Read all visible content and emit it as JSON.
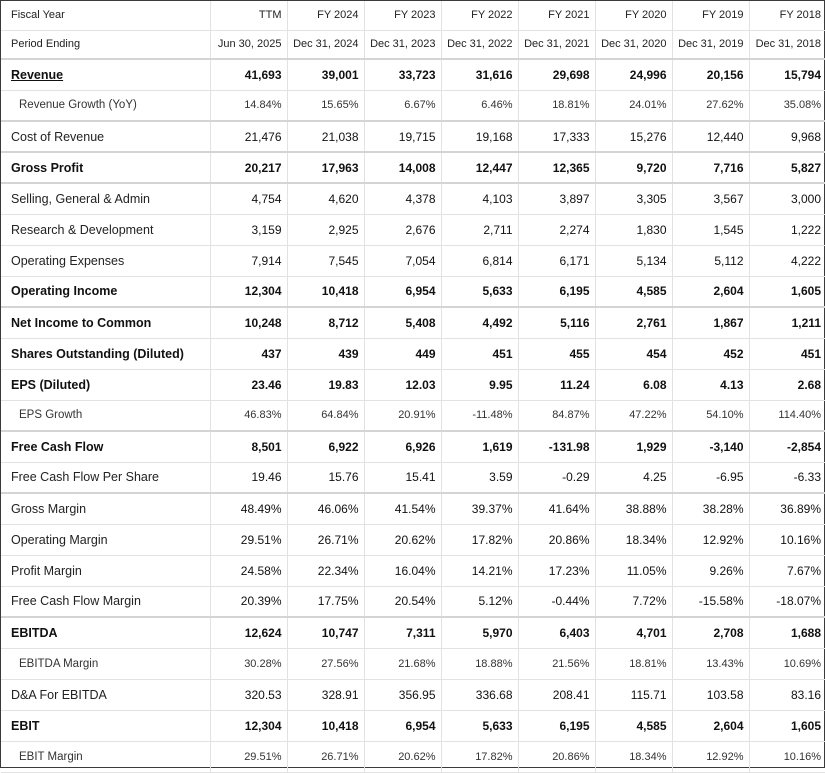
{
  "header": {
    "fiscal_year_label": "Fiscal Year",
    "period_label": "Period Ending",
    "years": [
      "TTM",
      "FY 2024",
      "FY 2023",
      "FY 2022",
      "FY 2021",
      "FY 2020",
      "FY 2019",
      "FY 2018"
    ],
    "periods": [
      "Jun 30, 2025",
      "Dec 31, 2024",
      "Dec 31, 2023",
      "Dec 31, 2022",
      "Dec 31, 2021",
      "Dec 31, 2020",
      "Dec 31, 2019",
      "Dec 31, 2018"
    ]
  },
  "rows": [
    {
      "label": "Revenue",
      "values": [
        "41,693",
        "39,001",
        "33,723",
        "31,616",
        "29,698",
        "24,996",
        "20,156",
        "15,794"
      ]
    },
    {
      "label": "Revenue Growth (YoY)",
      "values": [
        "14.84%",
        "15.65%",
        "6.67%",
        "6.46%",
        "18.81%",
        "24.01%",
        "27.62%",
        "35.08%"
      ]
    },
    {
      "label": "Cost of Revenue",
      "values": [
        "21,476",
        "21,038",
        "19,715",
        "19,168",
        "17,333",
        "15,276",
        "12,440",
        "9,968"
      ]
    },
    {
      "label": "Gross Profit",
      "values": [
        "20,217",
        "17,963",
        "14,008",
        "12,447",
        "12,365",
        "9,720",
        "7,716",
        "5,827"
      ]
    },
    {
      "label": "Selling, General & Admin",
      "values": [
        "4,754",
        "4,620",
        "4,378",
        "4,103",
        "3,897",
        "3,305",
        "3,567",
        "3,000"
      ]
    },
    {
      "label": "Research & Development",
      "values": [
        "3,159",
        "2,925",
        "2,676",
        "2,711",
        "2,274",
        "1,830",
        "1,545",
        "1,222"
      ]
    },
    {
      "label": "Operating Expenses",
      "values": [
        "7,914",
        "7,545",
        "7,054",
        "6,814",
        "6,171",
        "5,134",
        "5,112",
        "4,222"
      ]
    },
    {
      "label": "Operating Income",
      "values": [
        "12,304",
        "10,418",
        "6,954",
        "5,633",
        "6,195",
        "4,585",
        "2,604",
        "1,605"
      ]
    },
    {
      "label": "Net Income to Common",
      "values": [
        "10,248",
        "8,712",
        "5,408",
        "4,492",
        "5,116",
        "2,761",
        "1,867",
        "1,211"
      ]
    },
    {
      "label": "Shares Outstanding (Diluted)",
      "values": [
        "437",
        "439",
        "449",
        "451",
        "455",
        "454",
        "452",
        "451"
      ]
    },
    {
      "label": "EPS (Diluted)",
      "values": [
        "23.46",
        "19.83",
        "12.03",
        "9.95",
        "11.24",
        "6.08",
        "4.13",
        "2.68"
      ]
    },
    {
      "label": "EPS Growth",
      "values": [
        "46.83%",
        "64.84%",
        "20.91%",
        "-11.48%",
        "84.87%",
        "47.22%",
        "54.10%",
        "114.40%"
      ]
    },
    {
      "label": "Free Cash Flow",
      "values": [
        "8,501",
        "6,922",
        "6,926",
        "1,619",
        "-131.98",
        "1,929",
        "-3,140",
        "-2,854"
      ]
    },
    {
      "label": "Free Cash Flow Per Share",
      "values": [
        "19.46",
        "15.76",
        "15.41",
        "3.59",
        "-0.29",
        "4.25",
        "-6.95",
        "-6.33"
      ]
    },
    {
      "label": "Gross Margin",
      "values": [
        "48.49%",
        "46.06%",
        "41.54%",
        "39.37%",
        "41.64%",
        "38.88%",
        "38.28%",
        "36.89%"
      ]
    },
    {
      "label": "Operating Margin",
      "values": [
        "29.51%",
        "26.71%",
        "20.62%",
        "17.82%",
        "20.86%",
        "18.34%",
        "12.92%",
        "10.16%"
      ]
    },
    {
      "label": "Profit Margin",
      "values": [
        "24.58%",
        "22.34%",
        "16.04%",
        "14.21%",
        "17.23%",
        "11.05%",
        "9.26%",
        "7.67%"
      ]
    },
    {
      "label": "Free Cash Flow Margin",
      "values": [
        "20.39%",
        "17.75%",
        "20.54%",
        "5.12%",
        "-0.44%",
        "7.72%",
        "-15.58%",
        "-18.07%"
      ]
    },
    {
      "label": "EBITDA",
      "values": [
        "12,624",
        "10,747",
        "7,311",
        "5,970",
        "6,403",
        "4,701",
        "2,708",
        "1,688"
      ]
    },
    {
      "label": "EBITDA Margin",
      "values": [
        "30.28%",
        "27.56%",
        "21.68%",
        "18.88%",
        "21.56%",
        "18.81%",
        "13.43%",
        "10.69%"
      ]
    },
    {
      "label": "D&A For EBITDA",
      "values": [
        "320.53",
        "328.91",
        "356.95",
        "336.68",
        "208.41",
        "115.71",
        "103.58",
        "83.16"
      ]
    },
    {
      "label": "EBIT",
      "values": [
        "12,304",
        "10,418",
        "6,954",
        "5,633",
        "6,195",
        "4,585",
        "2,604",
        "1,605"
      ]
    },
    {
      "label": "EBIT Margin",
      "values": [
        "29.51%",
        "26.71%",
        "20.62%",
        "17.82%",
        "20.86%",
        "18.34%",
        "12.92%",
        "10.16%"
      ]
    }
  ],
  "colors": {
    "positive_growth": "#2e8b3a",
    "negative_growth": "#d43a3a"
  }
}
